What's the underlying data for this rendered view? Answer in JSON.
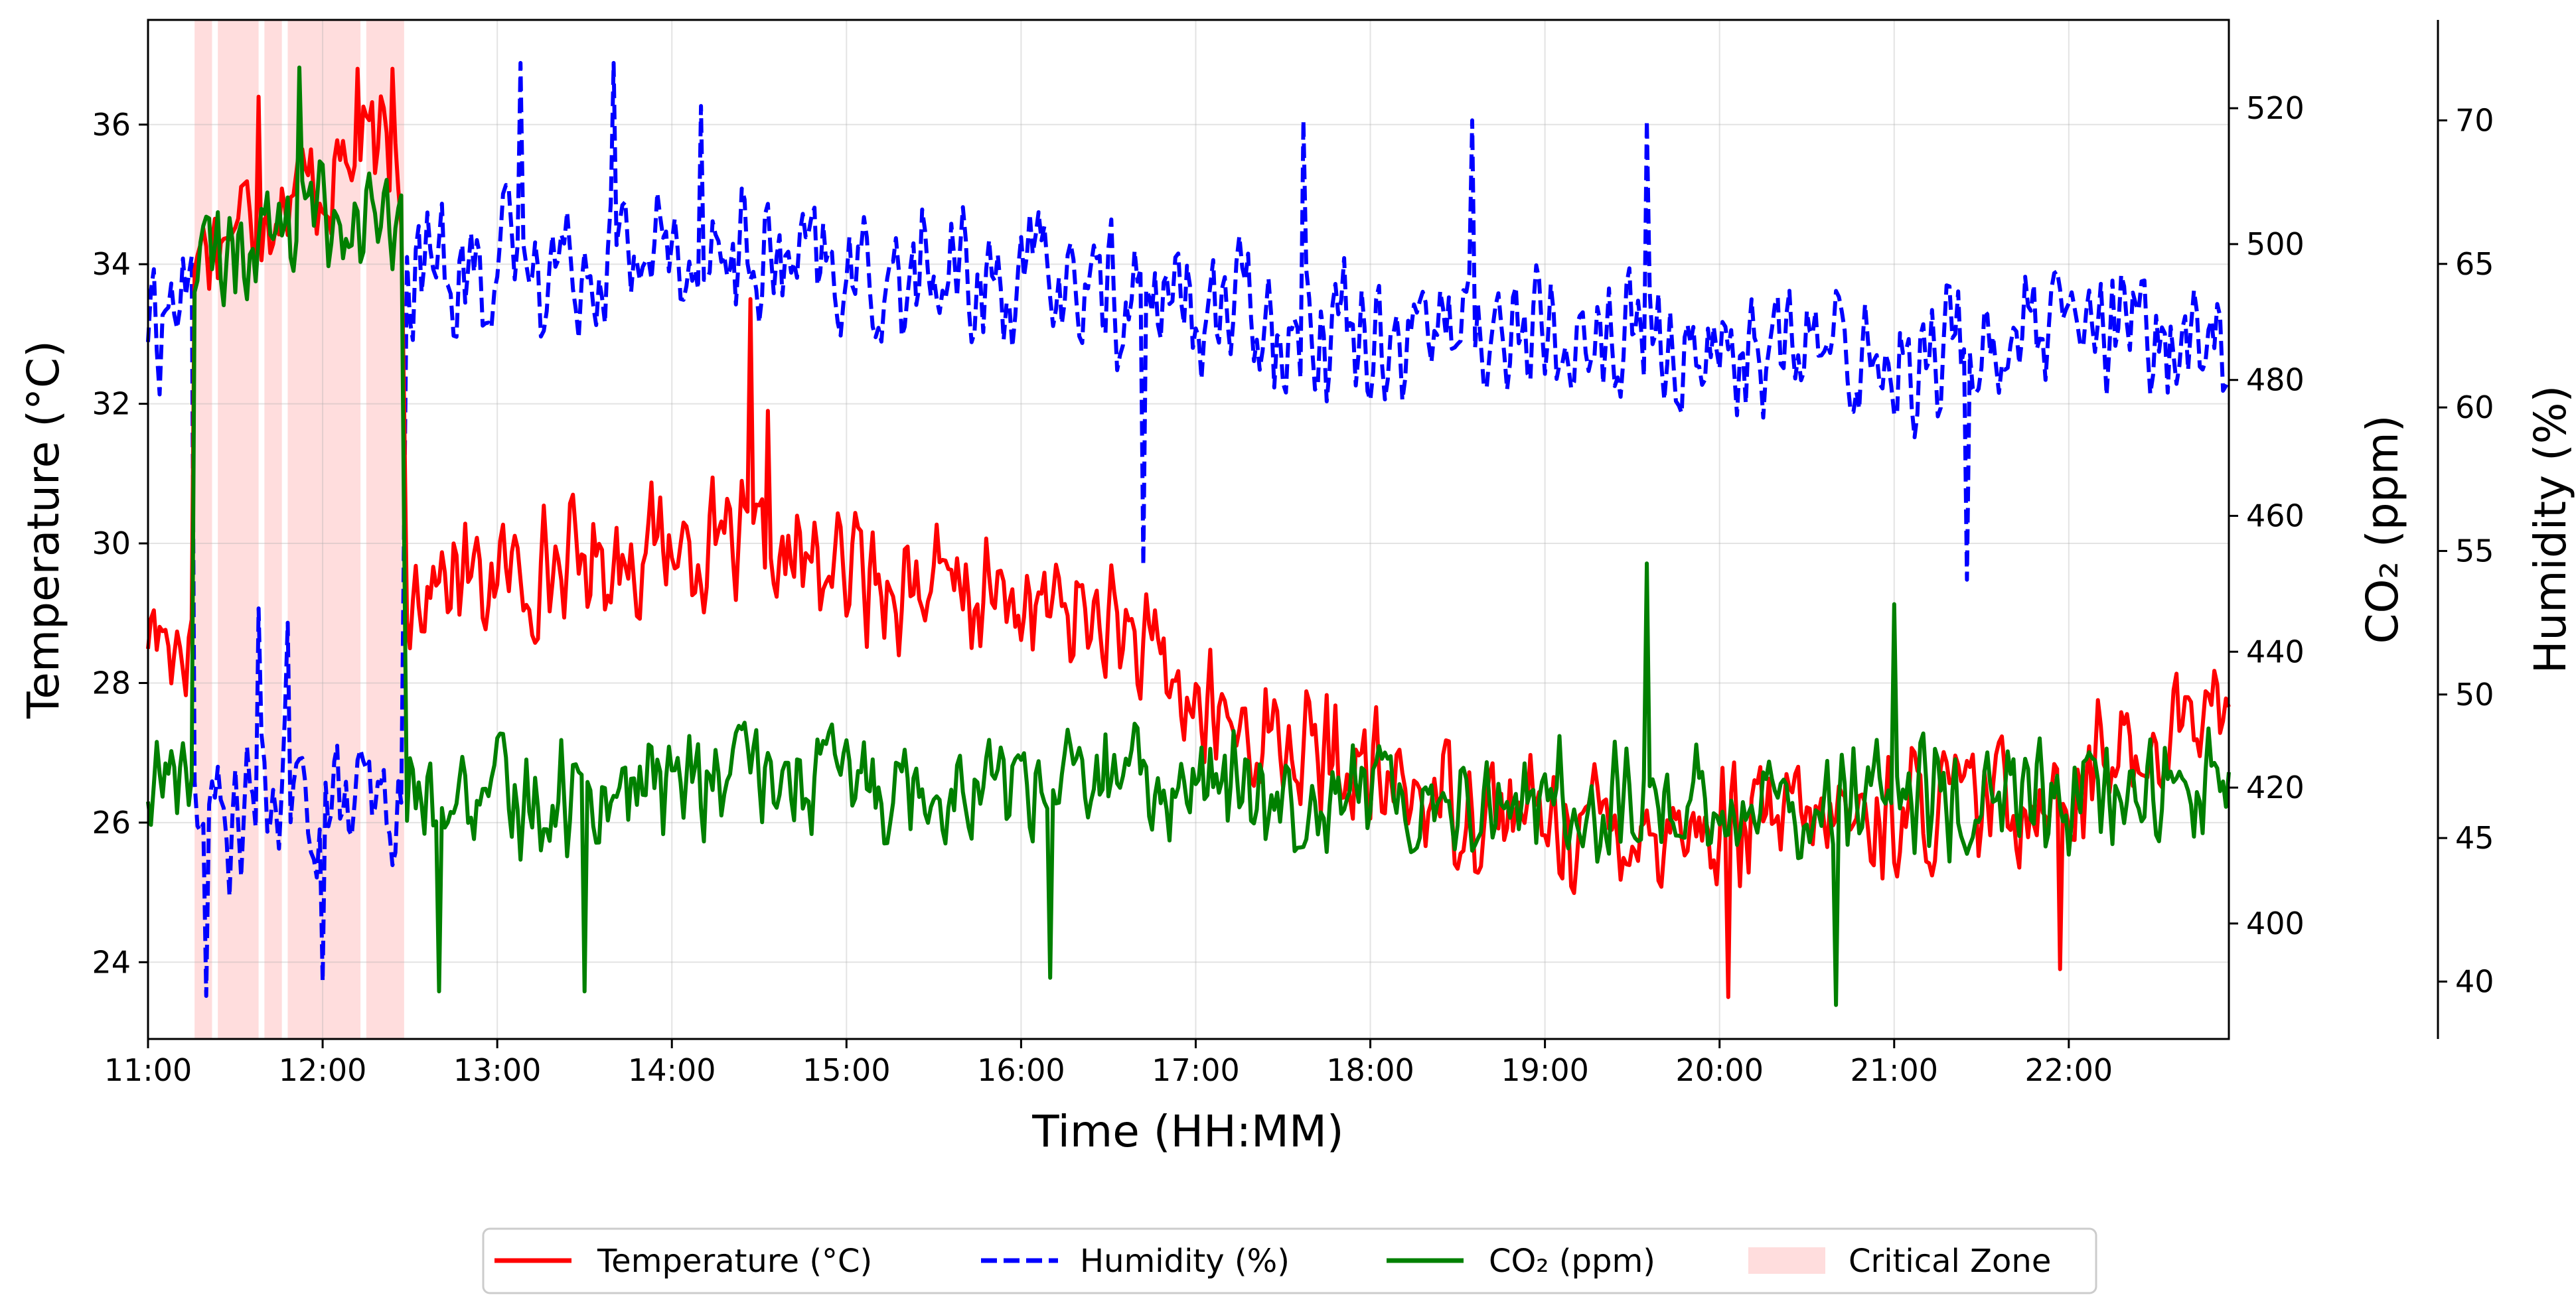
{
  "chart_data": {
    "type": "line",
    "xlabel": "Time (HH:MM)",
    "ylabel_left": "Temperature (°C)",
    "ylabel_right_1": "CO₂ (ppm)",
    "ylabel_right_2": "Humidity (%)",
    "x_range": [
      "11:00",
      "22:55"
    ],
    "x_ticks": [
      "11:00",
      "12:00",
      "13:00",
      "14:00",
      "15:00",
      "16:00",
      "17:00",
      "18:00",
      "19:00",
      "20:00",
      "21:00",
      "22:00"
    ],
    "temperature_axis": {
      "range": [
        22.9,
        37.5
      ],
      "ticks": [
        24,
        26,
        28,
        30,
        32,
        34,
        36
      ]
    },
    "co2_axis": {
      "range": [
        383,
        533
      ],
      "ticks": [
        400,
        420,
        440,
        460,
        480,
        500,
        520
      ]
    },
    "humidity_axis": {
      "range": [
        38,
        73.5
      ],
      "ticks": [
        40,
        45,
        50,
        55,
        60,
        65,
        70
      ]
    },
    "grid": true,
    "legend_position": "bottom-center",
    "critical_zone": {
      "name": "Critical Zone",
      "color": "#ffdddd",
      "intervals": [
        [
          "11:16",
          "11:22"
        ],
        [
          "11:24",
          "11:38"
        ],
        [
          "11:40",
          "11:46"
        ],
        [
          "11:48",
          "12:13"
        ],
        [
          "12:15",
          "12:28"
        ]
      ]
    },
    "series": [
      {
        "name": "Temperature (°C)",
        "axis": "temperature",
        "color": "#ff0000",
        "style": "solid",
        "anchors": [
          [
            "11:00",
            28.8
          ],
          [
            "11:15",
            28.6
          ],
          [
            "11:16",
            34.2
          ],
          [
            "11:30",
            34.6
          ],
          [
            "11:45",
            35.0
          ],
          [
            "12:00",
            35.2
          ],
          [
            "12:15",
            35.6
          ],
          [
            "12:27",
            35.4
          ],
          [
            "12:29",
            29.4
          ],
          [
            "13:00",
            29.5
          ],
          [
            "14:00",
            30.0
          ],
          [
            "15:00",
            29.6
          ],
          [
            "16:00",
            29.1
          ],
          [
            "16:30",
            28.9
          ],
          [
            "17:00",
            27.6
          ],
          [
            "18:00",
            26.6
          ],
          [
            "19:00",
            26.0
          ],
          [
            "20:00",
            25.9
          ],
          [
            "21:00",
            26.1
          ],
          [
            "22:00",
            26.5
          ],
          [
            "22:55",
            27.8
          ]
        ],
        "noise_amplitude": 1.1,
        "notable_points": [
          [
            "11:38",
            36.4
          ],
          [
            "12:12",
            36.8
          ],
          [
            "12:24",
            36.8
          ],
          [
            "14:27",
            33.5
          ],
          [
            "14:33",
            31.9
          ],
          [
            "20:03",
            23.5
          ],
          [
            "21:57",
            23.9
          ]
        ]
      },
      {
        "name": "Humidity (%)",
        "axis": "humidity",
        "color": "#0000ff",
        "style": "dashed",
        "anchors": [
          [
            "11:00",
            63.0
          ],
          [
            "11:15",
            64.0
          ],
          [
            "11:16",
            46.0
          ],
          [
            "11:30",
            45.5
          ],
          [
            "11:45",
            46.5
          ],
          [
            "12:00",
            46.0
          ],
          [
            "12:15",
            46.0
          ],
          [
            "12:27",
            45.0
          ],
          [
            "12:29",
            65.0
          ],
          [
            "13:00",
            65.0
          ],
          [
            "14:00",
            65.5
          ],
          [
            "15:00",
            64.5
          ],
          [
            "16:00",
            64.5
          ],
          [
            "17:00",
            63.5
          ],
          [
            "18:00",
            63.0
          ],
          [
            "19:00",
            62.5
          ],
          [
            "20:00",
            62.0
          ],
          [
            "21:00",
            61.8
          ],
          [
            "22:00",
            62.5
          ],
          [
            "22:55",
            62.5
          ]
        ],
        "noise_amplitude": 3.0,
        "notable_points": [
          [
            "11:20",
            39.5
          ],
          [
            "11:38",
            53.0
          ],
          [
            "11:48",
            52.5
          ],
          [
            "12:00",
            40.0
          ],
          [
            "13:08",
            72.0
          ],
          [
            "13:40",
            72.0
          ],
          [
            "14:10",
            70.5
          ],
          [
            "16:42",
            54.5
          ],
          [
            "17:37",
            70.0
          ],
          [
            "18:35",
            70.0
          ],
          [
            "19:35",
            70.0
          ],
          [
            "21:25",
            54.0
          ]
        ]
      },
      {
        "name": "CO₂ (ppm)",
        "axis": "co2",
        "color": "#008000",
        "style": "solid",
        "anchors": [
          [
            "11:00",
            420.0
          ],
          [
            "11:15",
            425.0
          ],
          [
            "11:16",
            495.0
          ],
          [
            "11:30",
            500.0
          ],
          [
            "11:45",
            502.0
          ],
          [
            "12:00",
            505.0
          ],
          [
            "12:15",
            503.0
          ],
          [
            "12:27",
            500.0
          ],
          [
            "12:29",
            418.0
          ],
          [
            "13:00",
            418.0
          ],
          [
            "14:00",
            421.0
          ],
          [
            "15:00",
            421.0
          ],
          [
            "16:00",
            421.0
          ],
          [
            "17:00",
            420.0
          ],
          [
            "18:00",
            419.0
          ],
          [
            "19:00",
            418.0
          ],
          [
            "20:00",
            418.0
          ],
          [
            "21:00",
            418.0
          ],
          [
            "22:00",
            418.0
          ],
          [
            "22:55",
            420.0
          ]
        ],
        "noise_amplitude": 10.5,
        "notable_points": [
          [
            "11:52",
            526.0
          ],
          [
            "12:40",
            390.0
          ],
          [
            "13:30",
            390.0
          ],
          [
            "16:10",
            392.0
          ],
          [
            "19:35",
            453.0
          ],
          [
            "20:40",
            388.0
          ],
          [
            "21:00",
            447.0
          ]
        ]
      }
    ]
  }
}
